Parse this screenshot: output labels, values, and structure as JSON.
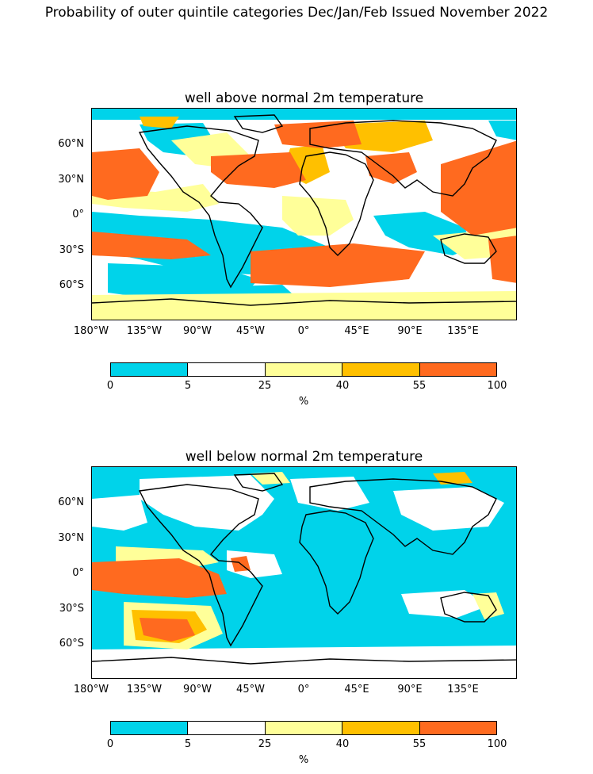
{
  "figure": {
    "title": "Probability of outer quintile categories Dec/Jan/Feb Issued November 2022"
  },
  "panels": [
    {
      "id": "above",
      "title": "well above normal 2m temperature"
    },
    {
      "id": "below",
      "title": "well below normal 2m temperature"
    }
  ],
  "axes": {
    "lat_labels": [
      "60°N",
      "30°N",
      "0°",
      "30°S",
      "60°S"
    ],
    "lon_labels": [
      "180°W",
      "135°W",
      "90°W",
      "45°W",
      "0°",
      "45°E",
      "90°E",
      "135°E"
    ]
  },
  "colorbar": {
    "ticks": [
      "0",
      "5",
      "25",
      "40",
      "55",
      "100"
    ],
    "unit": "%",
    "colors": [
      "#00d3ea",
      "#ffffff",
      "#ffff99",
      "#ffc000",
      "#ff6a1f"
    ]
  },
  "colors": {
    "cyan": "#00d3ea",
    "white": "#ffffff",
    "light_yellow": "#ffff99",
    "gold": "#ffc000",
    "orange": "#ff6a1f",
    "coastline": "#000000"
  }
}
